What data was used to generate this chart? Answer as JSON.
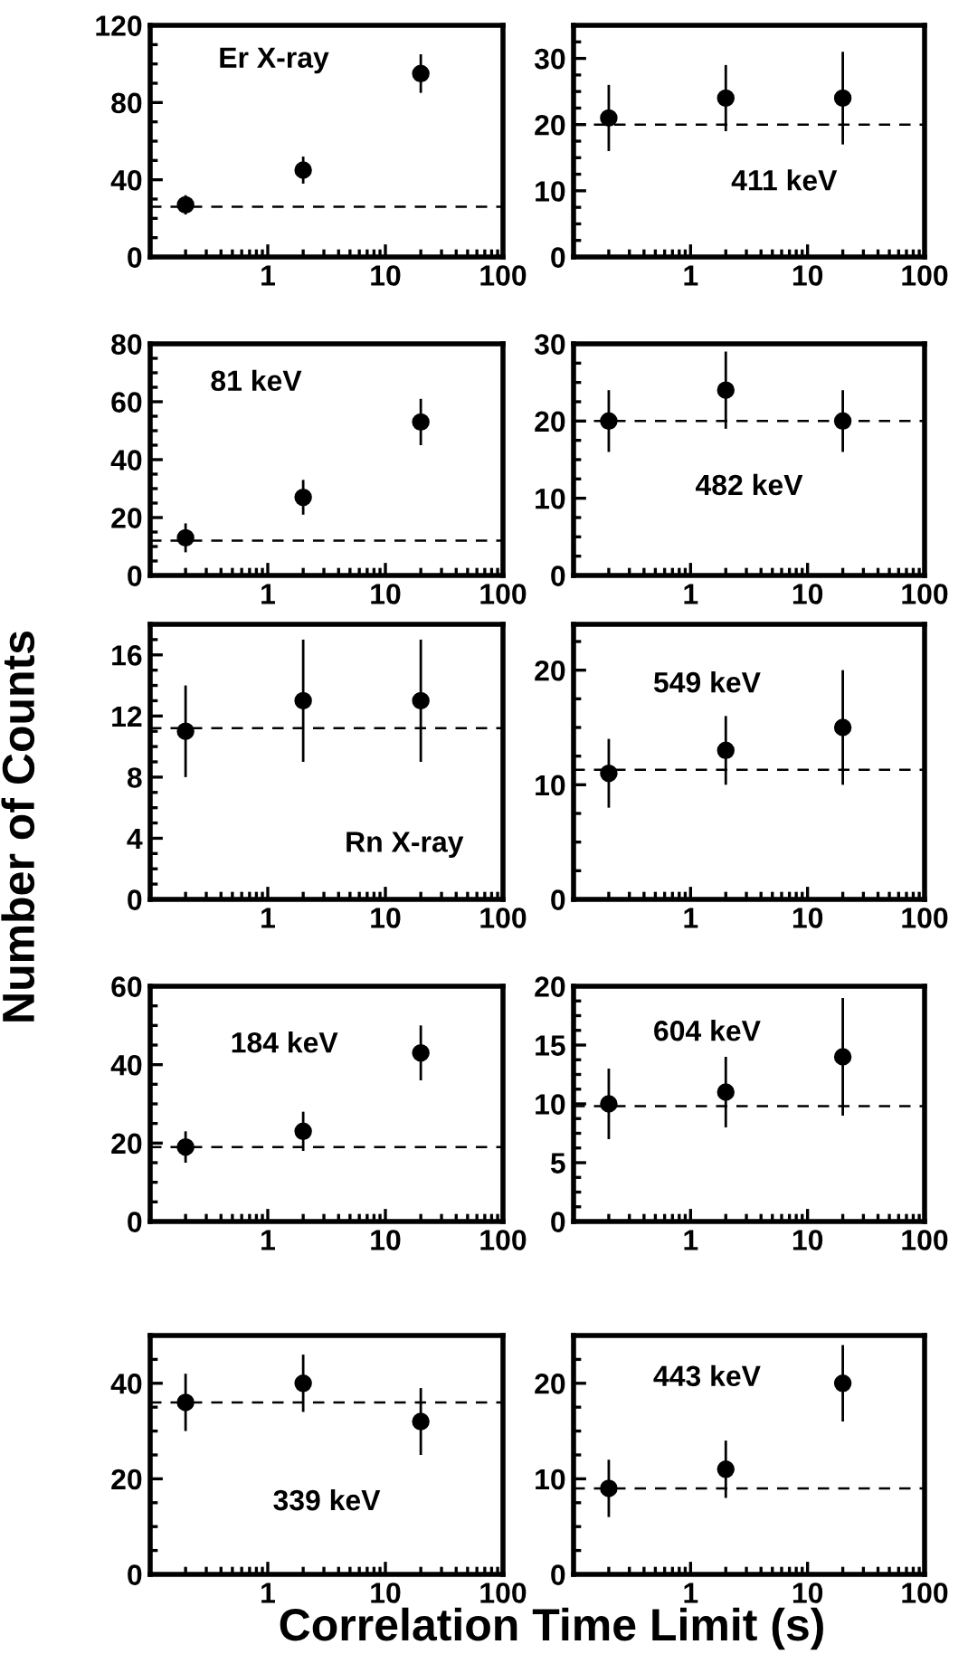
{
  "chart_data": [
    {
      "type": "scatter",
      "title": "Er X-ray",
      "x": [
        0.2,
        2,
        20
      ],
      "series": [
        {
          "color": "#000000",
          "values": [
            27,
            45,
            95
          ],
          "errors": [
            5,
            7,
            10
          ]
        }
      ],
      "log": "x",
      "xlim": [
        0.1,
        100
      ],
      "xticks": [
        1,
        10,
        100
      ],
      "ylim": [
        0,
        120
      ],
      "yticks": [
        0,
        40,
        80,
        120
      ],
      "ref_lines": [
        {
          "axis": "y",
          "value": 26,
          "line_style": "dashed",
          "color": "#000000"
        }
      ],
      "marker": "circle",
      "grid": false,
      "legend": false
    },
    {
      "type": "scatter",
      "title": "411 keV",
      "x": [
        0.2,
        2,
        20
      ],
      "series": [
        {
          "color": "#000000",
          "values": [
            21,
            24,
            24
          ],
          "errors": [
            5,
            5,
            7
          ]
        }
      ],
      "log": "x",
      "xlim": [
        0.1,
        100
      ],
      "xticks": [
        1,
        10,
        100
      ],
      "ylim": [
        0,
        35
      ],
      "yticks": [
        0,
        10,
        20,
        30
      ],
      "ref_lines": [
        {
          "axis": "y",
          "value": 20,
          "line_style": "dashed",
          "color": "#000000"
        }
      ],
      "marker": "circle",
      "grid": false,
      "legend": false
    },
    {
      "type": "scatter",
      "title": "81 keV",
      "x": [
        0.2,
        2,
        20
      ],
      "series": [
        {
          "color": "#000000",
          "values": [
            13,
            27,
            53
          ],
          "errors": [
            5,
            6,
            8
          ]
        }
      ],
      "log": "x",
      "xlim": [
        0.1,
        100
      ],
      "xticks": [
        1,
        10,
        100
      ],
      "ylim": [
        0,
        80
      ],
      "yticks": [
        0,
        20,
        40,
        60,
        80
      ],
      "ref_lines": [
        {
          "axis": "y",
          "value": 12,
          "line_style": "dashed",
          "color": "#000000"
        }
      ],
      "marker": "circle",
      "grid": false,
      "legend": false
    },
    {
      "type": "scatter",
      "title": "482 keV",
      "x": [
        0.2,
        2,
        20
      ],
      "series": [
        {
          "color": "#000000",
          "values": [
            20,
            24,
            20
          ],
          "errors": [
            4,
            5,
            4
          ]
        }
      ],
      "log": "x",
      "xlim": [
        0.1,
        100
      ],
      "xticks": [
        1,
        10,
        100
      ],
      "ylim": [
        0,
        30
      ],
      "yticks": [
        0,
        10,
        20,
        30
      ],
      "ref_lines": [
        {
          "axis": "y",
          "value": 20,
          "line_style": "dashed",
          "color": "#000000"
        }
      ],
      "marker": "circle",
      "grid": false,
      "legend": false
    },
    {
      "type": "scatter",
      "title": "Rn X-ray",
      "ylabel": "Number of Counts",
      "x": [
        0.2,
        2,
        20
      ],
      "series": [
        {
          "color": "#000000",
          "values": [
            11,
            13,
            13
          ],
          "errors": [
            3,
            4,
            4
          ]
        }
      ],
      "log": "x",
      "xlim": [
        0.1,
        100
      ],
      "xticks": [
        1,
        10,
        100
      ],
      "ylim": [
        0,
        18
      ],
      "yticks": [
        0,
        4,
        8,
        12,
        16
      ],
      "ref_lines": [
        {
          "axis": "y",
          "value": 11.2,
          "line_style": "dashed",
          "color": "#000000"
        }
      ],
      "marker": "circle",
      "grid": false,
      "legend": false
    },
    {
      "type": "scatter",
      "title": "549 keV",
      "x": [
        0.2,
        2,
        20
      ],
      "series": [
        {
          "color": "#000000",
          "values": [
            11,
            13,
            15
          ],
          "errors": [
            3,
            3,
            5
          ]
        }
      ],
      "log": "x",
      "xlim": [
        0.1,
        100
      ],
      "xticks": [
        1,
        10,
        100
      ],
      "ylim": [
        0,
        24
      ],
      "yticks": [
        0,
        10,
        20
      ],
      "ref_lines": [
        {
          "axis": "y",
          "value": 11.3,
          "line_style": "dashed",
          "color": "#000000"
        }
      ],
      "marker": "circle",
      "grid": false,
      "legend": false
    },
    {
      "type": "scatter",
      "title": "184 keV",
      "x": [
        0.2,
        2,
        20
      ],
      "series": [
        {
          "color": "#000000",
          "values": [
            19,
            23,
            43
          ],
          "errors": [
            4,
            5,
            7
          ]
        }
      ],
      "log": "x",
      "xlim": [
        0.1,
        100
      ],
      "xticks": [
        1,
        10,
        100
      ],
      "ylim": [
        0,
        60
      ],
      "yticks": [
        0,
        20,
        40,
        60
      ],
      "ref_lines": [
        {
          "axis": "y",
          "value": 19,
          "line_style": "dashed",
          "color": "#000000"
        }
      ],
      "marker": "circle",
      "grid": false,
      "legend": false
    },
    {
      "type": "scatter",
      "title": "604 keV",
      "x": [
        0.2,
        2,
        20
      ],
      "series": [
        {
          "color": "#000000",
          "values": [
            10,
            11,
            14
          ],
          "errors": [
            3,
            3,
            5
          ]
        }
      ],
      "log": "x",
      "xlim": [
        0.1,
        100
      ],
      "xticks": [
        1,
        10,
        100
      ],
      "ylim": [
        0,
        20
      ],
      "yticks": [
        0,
        5,
        10,
        15,
        20
      ],
      "ref_lines": [
        {
          "axis": "y",
          "value": 9.8,
          "line_style": "dashed",
          "color": "#000000"
        }
      ],
      "marker": "circle",
      "grid": false,
      "legend": false
    },
    {
      "type": "scatter",
      "title": "339 keV",
      "x": [
        0.2,
        2,
        20
      ],
      "series": [
        {
          "color": "#000000",
          "values": [
            36,
            40,
            32
          ],
          "errors": [
            6,
            6,
            7
          ]
        }
      ],
      "log": "x",
      "xlim": [
        0.1,
        100
      ],
      "xticks": [
        1,
        10,
        100
      ],
      "ylim": [
        0,
        50
      ],
      "yticks": [
        0,
        20,
        40
      ],
      "ref_lines": [
        {
          "axis": "y",
          "value": 36,
          "line_style": "dashed",
          "color": "#000000"
        }
      ],
      "marker": "circle",
      "grid": false,
      "legend": false
    },
    {
      "type": "scatter",
      "title": "443 keV",
      "xlabel": "Correlation Time Limit (s)",
      "x": [
        0.2,
        2,
        20
      ],
      "series": [
        {
          "color": "#000000",
          "values": [
            9,
            11,
            20
          ],
          "errors": [
            3,
            3,
            4
          ]
        }
      ],
      "log": "x",
      "xlim": [
        0.1,
        100
      ],
      "xticks": [
        1,
        10,
        100
      ],
      "ylim": [
        0,
        25
      ],
      "yticks": [
        0,
        10,
        20
      ],
      "ref_lines": [
        {
          "axis": "y",
          "value": 9,
          "line_style": "dashed",
          "color": "#000000"
        }
      ],
      "marker": "circle",
      "grid": false,
      "legend": false
    }
  ]
}
